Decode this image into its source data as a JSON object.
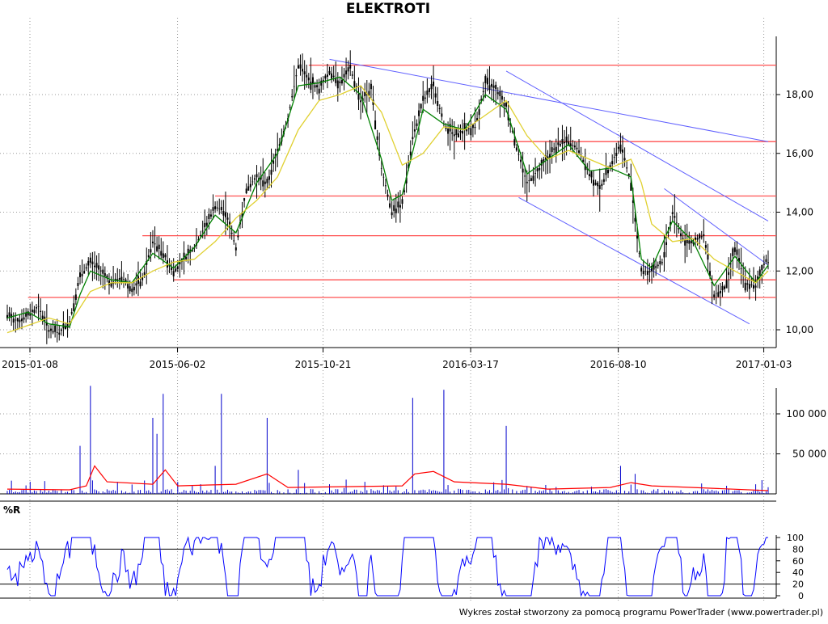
{
  "title": "ELEKTROTI",
  "footer": "Wykres został stworzony za pomocą programu PowerTrader (www.powertrader.pl)",
  "colors": {
    "candle": "#000000",
    "ma_short": "#008000",
    "ma_long": "#e0d030",
    "support": "#ff5050",
    "trendline": "#6060ff",
    "volume": "#0000cc",
    "volume_avg": "#ff0000",
    "oscillator": "#0000ff",
    "grid": "#999999"
  },
  "chart_data": [
    {
      "type": "candlestick",
      "name": "price",
      "title": "ELEKTROTI",
      "x_tick_labels": [
        "2015-01-08",
        "2015-06-02",
        "2015-10-21",
        "2016-03-17",
        "2016-08-10",
        "2017-01-03"
      ],
      "y_tick_labels": [
        "10,00",
        "12,00",
        "14,00",
        "16,00",
        "18,00"
      ],
      "ylim": [
        9.8,
        19.8
      ],
      "grid": true,
      "series": [
        {
          "key": "close",
          "points": [
            [
              0,
              10.5
            ],
            [
              5,
              10.3
            ],
            [
              10,
              10.5
            ],
            [
              15,
              10.8
            ],
            [
              20,
              10.0
            ],
            [
              25,
              9.9
            ],
            [
              30,
              10.3
            ],
            [
              35,
              11.8
            ],
            [
              40,
              12.3
            ],
            [
              45,
              12.0
            ],
            [
              50,
              11.6
            ],
            [
              55,
              11.8
            ],
            [
              60,
              11.4
            ],
            [
              65,
              11.7
            ],
            [
              70,
              13.0
            ],
            [
              75,
              12.6
            ],
            [
              80,
              12.0
            ],
            [
              85,
              12.4
            ],
            [
              90,
              12.8
            ],
            [
              95,
              13.5
            ],
            [
              100,
              14.2
            ],
            [
              105,
              14.0
            ],
            [
              110,
              12.8
            ],
            [
              115,
              14.8
            ],
            [
              120,
              15.2
            ],
            [
              125,
              15.0
            ],
            [
              130,
              16.1
            ],
            [
              135,
              17.2
            ],
            [
              140,
              19.0
            ],
            [
              145,
              18.5
            ],
            [
              150,
              18.2
            ],
            [
              155,
              18.8
            ],
            [
              160,
              18.4
            ],
            [
              165,
              18.9
            ],
            [
              170,
              17.8
            ],
            [
              175,
              18.2
            ],
            [
              180,
              15.5
            ],
            [
              185,
              14.0
            ],
            [
              190,
              14.3
            ],
            [
              195,
              16.5
            ],
            [
              200,
              17.8
            ],
            [
              205,
              18.3
            ],
            [
              210,
              17.0
            ],
            [
              215,
              16.6
            ],
            [
              220,
              16.8
            ],
            [
              225,
              16.9
            ],
            [
              230,
              18.4
            ],
            [
              235,
              18.2
            ],
            [
              240,
              17.6
            ],
            [
              245,
              16.2
            ],
            [
              250,
              15.0
            ],
            [
              255,
              15.4
            ],
            [
              260,
              15.9
            ],
            [
              265,
              16.3
            ],
            [
              270,
              16.4
            ],
            [
              275,
              16.1
            ],
            [
              280,
              15.3
            ],
            [
              285,
              14.8
            ],
            [
              290,
              15.6
            ],
            [
              295,
              16.3
            ],
            [
              300,
              15.0
            ],
            [
              305,
              12.0
            ],
            [
              310,
              12.0
            ],
            [
              315,
              12.3
            ],
            [
              320,
              14.0
            ],
            [
              325,
              13.1
            ],
            [
              330,
              13.0
            ],
            [
              335,
              13.2
            ],
            [
              340,
              11.2
            ],
            [
              345,
              11.4
            ],
            [
              350,
              12.8
            ],
            [
              355,
              11.6
            ],
            [
              360,
              11.5
            ],
            [
              365,
              12.4
            ],
            [
              366,
              12.3
            ]
          ]
        },
        {
          "key": "ma_short",
          "color": "#008000",
          "points": [
            [
              0,
              10.4
            ],
            [
              10,
              10.6
            ],
            [
              20,
              10.2
            ],
            [
              30,
              10.1
            ],
            [
              35,
              11.2
            ],
            [
              40,
              12.0
            ],
            [
              50,
              11.7
            ],
            [
              60,
              11.6
            ],
            [
              70,
              12.6
            ],
            [
              80,
              12.1
            ],
            [
              90,
              12.8
            ],
            [
              100,
              13.9
            ],
            [
              110,
              13.3
            ],
            [
              120,
              15.0
            ],
            [
              130,
              16.0
            ],
            [
              140,
              18.3
            ],
            [
              150,
              18.4
            ],
            [
              160,
              18.6
            ],
            [
              170,
              18.0
            ],
            [
              180,
              15.8
            ],
            [
              185,
              14.4
            ],
            [
              190,
              14.6
            ],
            [
              200,
              17.5
            ],
            [
              210,
              17.0
            ],
            [
              220,
              16.8
            ],
            [
              230,
              18.0
            ],
            [
              240,
              17.5
            ],
            [
              250,
              15.3
            ],
            [
              260,
              15.8
            ],
            [
              270,
              16.3
            ],
            [
              280,
              15.4
            ],
            [
              290,
              15.5
            ],
            [
              300,
              15.2
            ],
            [
              305,
              12.4
            ],
            [
              310,
              12.1
            ],
            [
              320,
              13.7
            ],
            [
              330,
              13.0
            ],
            [
              340,
              11.5
            ],
            [
              350,
              12.5
            ],
            [
              360,
              11.6
            ],
            [
              366,
              12.2
            ]
          ]
        },
        {
          "key": "ma_long",
          "color": "#e0d030",
          "points": [
            [
              0,
              9.9
            ],
            [
              20,
              10.4
            ],
            [
              30,
              10.2
            ],
            [
              40,
              11.3
            ],
            [
              50,
              11.6
            ],
            [
              60,
              11.6
            ],
            [
              70,
              12.0
            ],
            [
              80,
              12.3
            ],
            [
              90,
              12.4
            ],
            [
              100,
              13.0
            ],
            [
              110,
              13.8
            ],
            [
              120,
              14.4
            ],
            [
              130,
              15.2
            ],
            [
              140,
              16.8
            ],
            [
              150,
              17.8
            ],
            [
              160,
              18.0
            ],
            [
              170,
              18.3
            ],
            [
              180,
              17.4
            ],
            [
              190,
              15.6
            ],
            [
              200,
              16.0
            ],
            [
              210,
              16.9
            ],
            [
              220,
              16.8
            ],
            [
              230,
              17.3
            ],
            [
              240,
              17.8
            ],
            [
              250,
              16.6
            ],
            [
              260,
              15.8
            ],
            [
              270,
              16.1
            ],
            [
              280,
              15.8
            ],
            [
              290,
              15.5
            ],
            [
              300,
              15.8
            ],
            [
              305,
              15.0
            ],
            [
              310,
              13.6
            ],
            [
              320,
              13.0
            ],
            [
              330,
              13.1
            ],
            [
              340,
              12.4
            ],
            [
              350,
              12.0
            ],
            [
              360,
              11.6
            ],
            [
              366,
              12.0
            ]
          ]
        }
      ],
      "horizontal_lines": [
        {
          "y": 19.0,
          "x_start": 145
        },
        {
          "y": 16.4,
          "x_start": 215
        },
        {
          "y": 14.55,
          "x_start": 100
        },
        {
          "y": 13.2,
          "x_start": 65
        },
        {
          "y": 11.7,
          "x_start": 80
        },
        {
          "y": 11.1,
          "x_start": 10
        }
      ],
      "trend_lines": [
        [
          [
            155,
            19.2
          ],
          [
            366,
            16.4
          ]
        ],
        [
          [
            240,
            18.8
          ],
          [
            366,
            13.7
          ]
        ],
        [
          [
            246,
            14.5
          ],
          [
            357,
            10.2
          ]
        ],
        [
          [
            316,
            14.8
          ],
          [
            366,
            12.2
          ]
        ]
      ]
    },
    {
      "type": "bar",
      "name": "volume",
      "y_tick_labels": [
        "50 000",
        "100 000"
      ],
      "ylim": [
        0,
        135000
      ],
      "spikes": [
        [
          35,
          60000
        ],
        [
          40,
          135000
        ],
        [
          70,
          95000
        ],
        [
          72,
          75000
        ],
        [
          75,
          125000
        ],
        [
          100,
          35000
        ],
        [
          103,
          125000
        ],
        [
          125,
          95000
        ],
        [
          140,
          30000
        ],
        [
          195,
          120000
        ],
        [
          210,
          130000
        ],
        [
          240,
          85000
        ],
        [
          295,
          35000
        ],
        [
          302,
          25000
        ],
        [
          360,
          12000
        ]
      ],
      "baseline_noise": 6000,
      "avg_line": [
        [
          0,
          6000
        ],
        [
          30,
          5000
        ],
        [
          38,
          10000
        ],
        [
          42,
          35000
        ],
        [
          48,
          15000
        ],
        [
          70,
          12000
        ],
        [
          76,
          30000
        ],
        [
          82,
          10000
        ],
        [
          110,
          12000
        ],
        [
          125,
          25000
        ],
        [
          135,
          8000
        ],
        [
          190,
          10000
        ],
        [
          196,
          25000
        ],
        [
          205,
          28000
        ],
        [
          215,
          15000
        ],
        [
          240,
          12000
        ],
        [
          260,
          6000
        ],
        [
          290,
          8000
        ],
        [
          300,
          14000
        ],
        [
          310,
          10000
        ],
        [
          330,
          8000
        ],
        [
          366,
          4000
        ]
      ]
    },
    {
      "type": "line",
      "name": "%R",
      "ylabel": "%R",
      "y_tick_labels": [
        "0",
        "20",
        "40",
        "60",
        "80",
        "100"
      ],
      "ylim": [
        0,
        100
      ],
      "levels": [
        20,
        80
      ]
    }
  ]
}
